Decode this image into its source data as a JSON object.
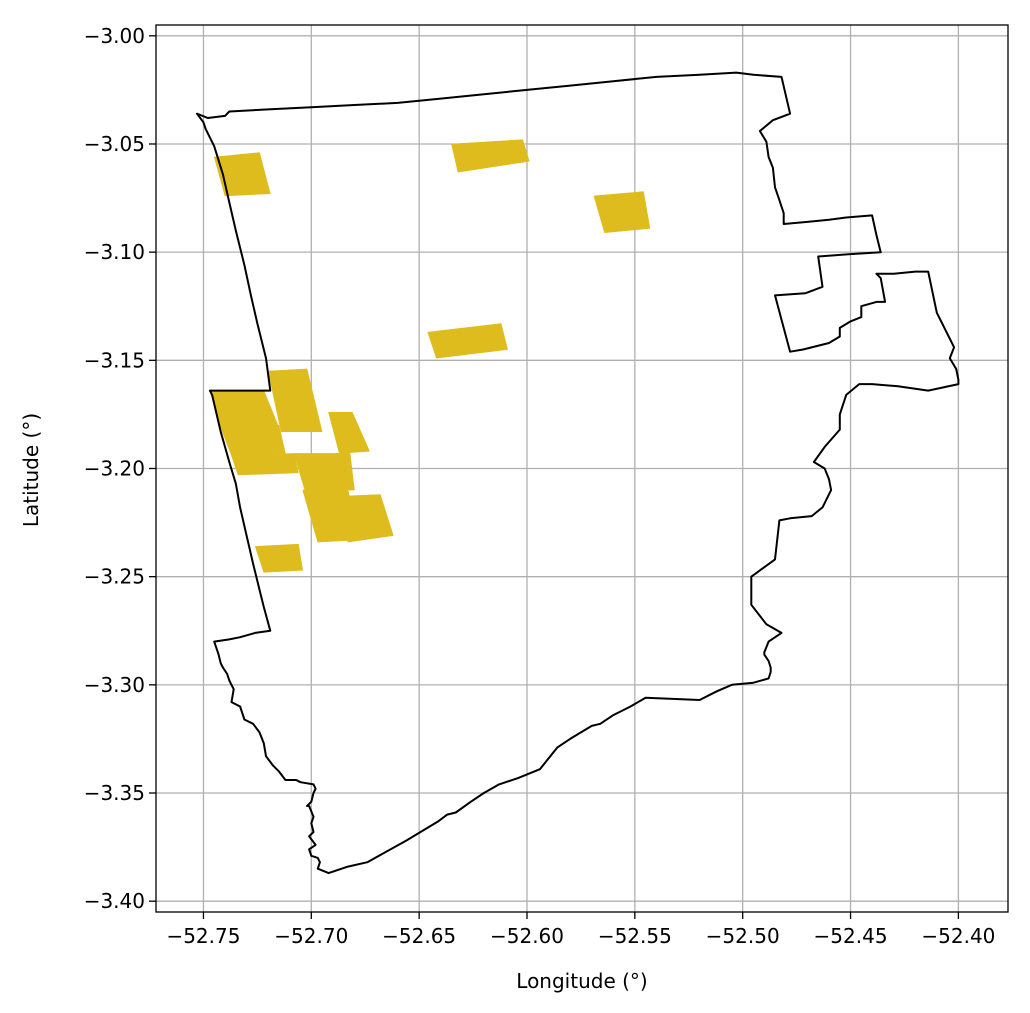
{
  "chart_data": {
    "type": "map",
    "xlabel": "Longitude (°)",
    "ylabel": "Latitude (°)",
    "xlim": [
      -52.772,
      -52.377
    ],
    "ylim": [
      -3.405,
      -2.995
    ],
    "grid": true,
    "x_ticks": [
      -52.75,
      -52.7,
      -52.65,
      -52.6,
      -52.55,
      -52.5,
      -52.45,
      -52.4
    ],
    "x_tick_labels": [
      "−52.75",
      "−52.70",
      "−52.65",
      "−52.60",
      "−52.55",
      "−52.50",
      "−52.45",
      "−52.40"
    ],
    "y_ticks": [
      -3.0,
      -3.05,
      -3.1,
      -3.15,
      -3.2,
      -3.25,
      -3.3,
      -3.35,
      -3.4
    ],
    "y_tick_labels": [
      "−3.00",
      "−3.05",
      "−3.10",
      "−3.15",
      "−3.20",
      "−3.25",
      "−3.30",
      "−3.35",
      "−3.40"
    ],
    "boundary_color": "#000000",
    "patch_color": "#dfbc1e",
    "boundaries": [
      [
        [
          -52.753,
          -3.036
        ],
        [
          -52.748,
          -3.038
        ],
        [
          -52.74,
          -3.037
        ],
        [
          -52.738,
          -3.035
        ],
        [
          -52.72,
          -3.034
        ],
        [
          -52.7,
          -3.033
        ],
        [
          -52.68,
          -3.032
        ],
        [
          -52.66,
          -3.031
        ],
        [
          -52.64,
          -3.029
        ],
        [
          -52.62,
          -3.027
        ],
        [
          -52.6,
          -3.025
        ],
        [
          -52.58,
          -3.023
        ],
        [
          -52.56,
          -3.021
        ],
        [
          -52.54,
          -3.019
        ],
        [
          -52.52,
          -3.018
        ],
        [
          -52.503,
          -3.017
        ],
        [
          -52.495,
          -3.018
        ],
        [
          -52.482,
          -3.019
        ],
        [
          -52.478,
          -3.036
        ],
        [
          -52.486,
          -3.039
        ],
        [
          -52.492,
          -3.044
        ],
        [
          -52.489,
          -3.049
        ],
        [
          -52.488,
          -3.056
        ],
        [
          -52.486,
          -3.061
        ],
        [
          -52.485,
          -3.07
        ],
        [
          -52.483,
          -3.076
        ],
        [
          -52.481,
          -3.082
        ],
        [
          -52.481,
          -3.087
        ],
        [
          -52.47,
          -3.086
        ],
        [
          -52.46,
          -3.085
        ],
        [
          -52.452,
          -3.084
        ],
        [
          -52.44,
          -3.083
        ],
        [
          -52.438,
          -3.092
        ],
        [
          -52.436,
          -3.1
        ],
        [
          -52.451,
          -3.101
        ],
        [
          -52.465,
          -3.102
        ],
        [
          -52.463,
          -3.116
        ],
        [
          -52.471,
          -3.119
        ],
        [
          -52.485,
          -3.12
        ],
        [
          -52.478,
          -3.146
        ],
        [
          -52.472,
          -3.145
        ],
        [
          -52.46,
          -3.142
        ],
        [
          -52.455,
          -3.139
        ],
        [
          -52.455,
          -3.135
        ],
        [
          -52.45,
          -3.132
        ],
        [
          -52.445,
          -3.13
        ],
        [
          -52.445,
          -3.125
        ],
        [
          -52.438,
          -3.123
        ],
        [
          -52.434,
          -3.123
        ],
        [
          -52.436,
          -3.112
        ],
        [
          -52.438,
          -3.11
        ],
        [
          -52.43,
          -3.11
        ],
        [
          -52.42,
          -3.109
        ],
        [
          -52.414,
          -3.109
        ],
        [
          -52.41,
          -3.128
        ],
        [
          -52.404,
          -3.14
        ],
        [
          -52.402,
          -3.144
        ],
        [
          -52.404,
          -3.149
        ],
        [
          -52.401,
          -3.154
        ],
        [
          -52.4,
          -3.159
        ],
        [
          -52.4,
          -3.161
        ],
        [
          -52.414,
          -3.164
        ],
        [
          -52.428,
          -3.162
        ],
        [
          -52.44,
          -3.161
        ],
        [
          -52.446,
          -3.161
        ],
        [
          -52.452,
          -3.166
        ],
        [
          -52.455,
          -3.175
        ],
        [
          -52.455,
          -3.182
        ],
        [
          -52.462,
          -3.19
        ],
        [
          -52.467,
          -3.197
        ],
        [
          -52.462,
          -3.2
        ],
        [
          -52.46,
          -3.205
        ],
        [
          -52.459,
          -3.21
        ],
        [
          -52.463,
          -3.218
        ],
        [
          -52.468,
          -3.222
        ],
        [
          -52.478,
          -3.223
        ],
        [
          -52.483,
          -3.224
        ],
        [
          -52.485,
          -3.242
        ],
        [
          -52.496,
          -3.25
        ],
        [
          -52.496,
          -3.263
        ],
        [
          -52.489,
          -3.272
        ],
        [
          -52.482,
          -3.276
        ],
        [
          -52.488,
          -3.28
        ],
        [
          -52.49,
          -3.285
        ],
        [
          -52.49,
          -3.286
        ],
        [
          -52.488,
          -3.289
        ],
        [
          -52.487,
          -3.292
        ],
        [
          -52.487,
          -3.294
        ],
        [
          -52.488,
          -3.297
        ],
        [
          -52.495,
          -3.299
        ],
        [
          -52.505,
          -3.3
        ],
        [
          -52.512,
          -3.303
        ],
        [
          -52.52,
          -3.307
        ],
        [
          -52.545,
          -3.306
        ],
        [
          -52.552,
          -3.31
        ],
        [
          -52.56,
          -3.314
        ],
        [
          -52.566,
          -3.318
        ],
        [
          -52.57,
          -3.319
        ],
        [
          -52.58,
          -3.325
        ],
        [
          -52.586,
          -3.329
        ],
        [
          -52.594,
          -3.339
        ],
        [
          -52.604,
          -3.343
        ],
        [
          -52.613,
          -3.346
        ],
        [
          -52.62,
          -3.35
        ],
        [
          -52.626,
          -3.354
        ],
        [
          -52.633,
          -3.359
        ],
        [
          -52.637,
          -3.36
        ],
        [
          -52.641,
          -3.363
        ],
        [
          -52.646,
          -3.366
        ],
        [
          -52.656,
          -3.372
        ],
        [
          -52.674,
          -3.382
        ],
        [
          -52.683,
          -3.384
        ],
        [
          -52.692,
          -3.387
        ],
        [
          -52.697,
          -3.385
        ],
        [
          -52.696,
          -3.382
        ],
        [
          -52.697,
          -3.38
        ],
        [
          -52.7,
          -3.379
        ],
        [
          -52.701,
          -3.376
        ],
        [
          -52.698,
          -3.374
        ],
        [
          -52.701,
          -3.37
        ],
        [
          -52.699,
          -3.368
        ],
        [
          -52.7,
          -3.364
        ],
        [
          -52.699,
          -3.361
        ],
        [
          -52.701,
          -3.356
        ],
        [
          -52.702,
          -3.356
        ],
        [
          -52.7,
          -3.354
        ],
        [
          -52.699,
          -3.35
        ],
        [
          -52.698,
          -3.348
        ],
        [
          -52.699,
          -3.346
        ],
        [
          -52.705,
          -3.345
        ],
        [
          -52.707,
          -3.344
        ],
        [
          -52.712,
          -3.344
        ],
        [
          -52.715,
          -3.34
        ],
        [
          -52.718,
          -3.337
        ],
        [
          -52.721,
          -3.333
        ],
        [
          -52.722,
          -3.327
        ],
        [
          -52.724,
          -3.322
        ],
        [
          -52.727,
          -3.318
        ],
        [
          -52.731,
          -3.316
        ],
        [
          -52.733,
          -3.31
        ],
        [
          -52.737,
          -3.308
        ],
        [
          -52.736,
          -3.302
        ],
        [
          -52.738,
          -3.298
        ],
        [
          -52.739,
          -3.295
        ],
        [
          -52.741,
          -3.292
        ],
        [
          -52.742,
          -3.29
        ],
        [
          -52.743,
          -3.286
        ],
        [
          -52.744,
          -3.283
        ],
        [
          -52.745,
          -3.28
        ],
        [
          -52.738,
          -3.279
        ],
        [
          -52.733,
          -3.278
        ],
        [
          -52.726,
          -3.276
        ],
        [
          -52.719,
          -3.275
        ],
        [
          -52.722,
          -3.264
        ],
        [
          -52.724,
          -3.256
        ],
        [
          -52.727,
          -3.244
        ],
        [
          -52.73,
          -3.231
        ],
        [
          -52.733,
          -3.218
        ],
        [
          -52.735,
          -3.207
        ],
        [
          -52.738,
          -3.197
        ],
        [
          -52.742,
          -3.183
        ],
        [
          -52.746,
          -3.166
        ],
        [
          -52.747,
          -3.164
        ],
        [
          -52.734,
          -3.164
        ],
        [
          -52.722,
          -3.164
        ],
        [
          -52.719,
          -3.164
        ],
        [
          -52.721,
          -3.149
        ],
        [
          -52.725,
          -3.133
        ],
        [
          -52.728,
          -3.12
        ],
        [
          -52.731,
          -3.106
        ],
        [
          -52.735,
          -3.09
        ],
        [
          -52.738,
          -3.077
        ],
        [
          -52.741,
          -3.064
        ],
        [
          -52.745,
          -3.051
        ],
        [
          -52.749,
          -3.043
        ],
        [
          -52.75,
          -3.04
        ],
        [
          -52.753,
          -3.036
        ]
      ]
    ],
    "patches": [
      [
        [
          -52.745,
          -3.056
        ],
        [
          -52.724,
          -3.054
        ],
        [
          -52.719,
          -3.073
        ],
        [
          -52.74,
          -3.074
        ]
      ],
      [
        [
          -52.635,
          -3.05
        ],
        [
          -52.602,
          -3.048
        ],
        [
          -52.599,
          -3.058
        ],
        [
          -52.632,
          -3.063
        ]
      ],
      [
        [
          -52.569,
          -3.074
        ],
        [
          -52.546,
          -3.072
        ],
        [
          -52.543,
          -3.089
        ],
        [
          -52.564,
          -3.091
        ]
      ],
      [
        [
          -52.646,
          -3.137
        ],
        [
          -52.612,
          -3.133
        ],
        [
          -52.609,
          -3.145
        ],
        [
          -52.642,
          -3.149
        ]
      ],
      [
        [
          -52.72,
          -3.155
        ],
        [
          -52.702,
          -3.154
        ],
        [
          -52.695,
          -3.183
        ],
        [
          -52.714,
          -3.183
        ]
      ],
      [
        [
          -52.747,
          -3.164
        ],
        [
          -52.722,
          -3.164
        ],
        [
          -52.715,
          -3.181
        ],
        [
          -52.742,
          -3.181
        ]
      ],
      [
        [
          -52.742,
          -3.181
        ],
        [
          -52.715,
          -3.18
        ],
        [
          -52.712,
          -3.193
        ],
        [
          -52.737,
          -3.194
        ]
      ],
      [
        [
          -52.737,
          -3.194
        ],
        [
          -52.708,
          -3.193
        ],
        [
          -52.706,
          -3.202
        ],
        [
          -52.734,
          -3.203
        ]
      ],
      [
        [
          -52.692,
          -3.174
        ],
        [
          -52.681,
          -3.174
        ],
        [
          -52.673,
          -3.192
        ],
        [
          -52.687,
          -3.193
        ]
      ],
      [
        [
          -52.708,
          -3.193
        ],
        [
          -52.682,
          -3.193
        ],
        [
          -52.68,
          -3.21
        ],
        [
          -52.703,
          -3.21
        ]
      ],
      [
        [
          -52.704,
          -3.21
        ],
        [
          -52.683,
          -3.21
        ],
        [
          -52.678,
          -3.233
        ],
        [
          -52.697,
          -3.234
        ]
      ],
      [
        [
          -52.69,
          -3.213
        ],
        [
          -52.668,
          -3.212
        ],
        [
          -52.662,
          -3.231
        ],
        [
          -52.683,
          -3.234
        ]
      ],
      [
        [
          -52.726,
          -3.236
        ],
        [
          -52.706,
          -3.235
        ],
        [
          -52.704,
          -3.247
        ],
        [
          -52.722,
          -3.248
        ]
      ]
    ]
  }
}
